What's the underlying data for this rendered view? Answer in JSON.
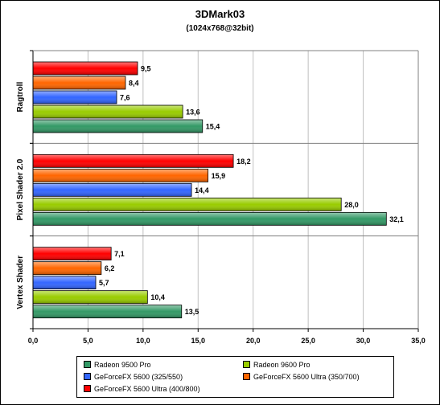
{
  "chart_data": {
    "type": "bar",
    "orientation": "horizontal",
    "title": "3DMark03",
    "subtitle": "(1024x768@32bit)",
    "categories": [
      "Ragtroll",
      "Pixel Shader 2.0",
      "Vertex Shader"
    ],
    "xlim": [
      0,
      35
    ],
    "x_ticks": [
      "0,0",
      "5,0",
      "10,0",
      "15,0",
      "20,0",
      "25,0",
      "30,0",
      "35,0"
    ],
    "grid": "vertical",
    "legend_position": "bottom",
    "series": [
      {
        "name": "GeForceFX 5600 Ultra (400/800)",
        "color": "#ff0000",
        "values": [
          9.5,
          18.2,
          7.1
        ],
        "labels": [
          "9,5",
          "18,2",
          "7,1"
        ]
      },
      {
        "name": "GeForceFX 5600 Ultra (350/700)",
        "color": "#ff6600",
        "values": [
          8.4,
          15.9,
          6.2
        ],
        "labels": [
          "8,4",
          "15,9",
          "6,2"
        ]
      },
      {
        "name": "GeForceFX 5600 (325/550)",
        "color": "#3366ff",
        "values": [
          7.6,
          14.4,
          5.7
        ],
        "labels": [
          "7,6",
          "14,4",
          "5,7"
        ]
      },
      {
        "name": "Radeon 9600 Pro",
        "color": "#99cc00",
        "values": [
          13.6,
          28.0,
          10.4
        ],
        "labels": [
          "13,6",
          "28,0",
          "10,4"
        ]
      },
      {
        "name": "Radeon 9500 Pro",
        "color": "#339966",
        "values": [
          15.4,
          32.1,
          13.5
        ],
        "labels": [
          "15,4",
          "32,1",
          "13,5"
        ]
      }
    ]
  },
  "legend": {
    "entries": [
      {
        "label": "Radeon 9500 Pro",
        "color": "#339966"
      },
      {
        "label": "Radeon 9600 Pro",
        "color": "#99cc00"
      },
      {
        "label": "GeForceFX 5600 (325/550)",
        "color": "#3366ff"
      },
      {
        "label": "GeForceFX 5600 Ultra (350/700)",
        "color": "#ff6600"
      },
      {
        "label": "GeForceFX 5600 Ultra (400/800)",
        "color": "#ff0000"
      }
    ]
  }
}
